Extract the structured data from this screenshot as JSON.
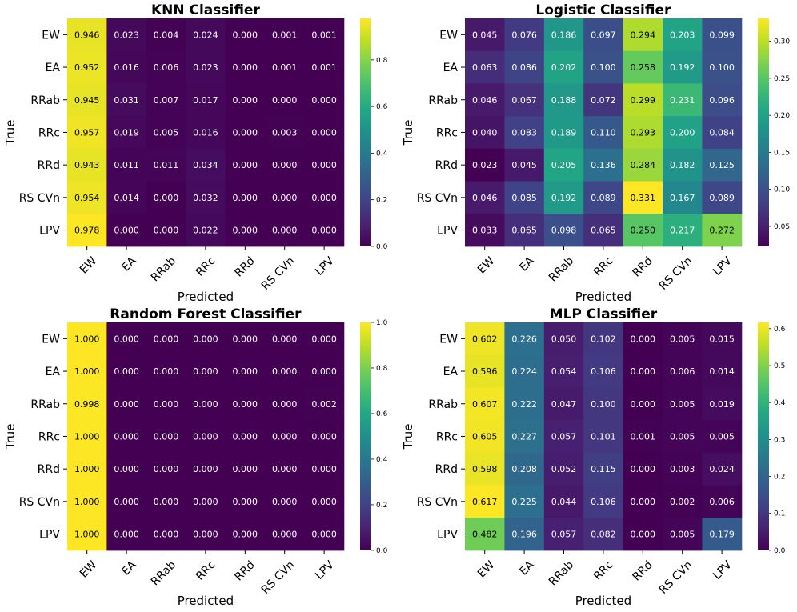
{
  "chart_data": [
    {
      "type": "heatmap",
      "title": "KNN Classifier",
      "xlabel": "Predicted",
      "ylabel": "True",
      "rows": [
        "EW",
        "EA",
        "RRab",
        "RRc",
        "RRd",
        "RS CVn",
        "LPV"
      ],
      "cols": [
        "EW",
        "EA",
        "RRab",
        "RRc",
        "RRd",
        "RS CVn",
        "LPV"
      ],
      "values": [
        [
          0.946,
          0.023,
          0.004,
          0.024,
          0.0,
          0.001,
          0.001
        ],
        [
          0.952,
          0.016,
          0.006,
          0.023,
          0.0,
          0.001,
          0.001
        ],
        [
          0.945,
          0.031,
          0.007,
          0.017,
          0.0,
          0.0,
          0.0
        ],
        [
          0.957,
          0.019,
          0.005,
          0.016,
          0.0,
          0.003,
          0.0
        ],
        [
          0.943,
          0.011,
          0.011,
          0.034,
          0.0,
          0.0,
          0.0
        ],
        [
          0.954,
          0.014,
          0.0,
          0.032,
          0.0,
          0.0,
          0.0
        ],
        [
          0.978,
          0.0,
          0.0,
          0.022,
          0.0,
          0.0,
          0.0
        ]
      ],
      "vmin": 0.0,
      "vmax": 0.978,
      "colorbar_ticks": [
        0.0,
        0.2,
        0.4,
        0.6,
        0.8
      ],
      "colorbar_labels": [
        "0.0",
        "0.2",
        "0.4",
        "0.6",
        "0.8"
      ]
    },
    {
      "type": "heatmap",
      "title": "Logistic Classifier",
      "xlabel": "Predicted",
      "ylabel": "True",
      "rows": [
        "EW",
        "EA",
        "RRab",
        "RRc",
        "RRd",
        "RS CVn",
        "LPV"
      ],
      "cols": [
        "EW",
        "EA",
        "RRab",
        "RRc",
        "RRd",
        "RS CVn",
        "LPV"
      ],
      "values": [
        [
          0.045,
          0.076,
          0.186,
          0.097,
          0.294,
          0.203,
          0.099
        ],
        [
          0.063,
          0.086,
          0.202,
          0.1,
          0.258,
          0.192,
          0.1
        ],
        [
          0.046,
          0.067,
          0.188,
          0.072,
          0.299,
          0.231,
          0.096
        ],
        [
          0.04,
          0.083,
          0.189,
          0.11,
          0.293,
          0.2,
          0.084
        ],
        [
          0.023,
          0.045,
          0.205,
          0.136,
          0.284,
          0.182,
          0.125
        ],
        [
          0.046,
          0.085,
          0.192,
          0.089,
          0.331,
          0.167,
          0.089
        ],
        [
          0.033,
          0.065,
          0.098,
          0.065,
          0.25,
          0.217,
          0.272
        ]
      ],
      "vmin": 0.023,
      "vmax": 0.331,
      "colorbar_ticks": [
        0.05,
        0.1,
        0.15,
        0.2,
        0.25,
        0.3
      ],
      "colorbar_labels": [
        "0.05",
        "0.10",
        "0.15",
        "0.20",
        "0.25",
        "0.30"
      ]
    },
    {
      "type": "heatmap",
      "title": "Random Forest Classifier",
      "xlabel": "Predicted",
      "ylabel": "True",
      "rows": [
        "EW",
        "EA",
        "RRab",
        "RRc",
        "RRd",
        "RS CVn",
        "LPV"
      ],
      "cols": [
        "EW",
        "EA",
        "RRab",
        "RRc",
        "RRd",
        "RS CVn",
        "LPV"
      ],
      "values": [
        [
          1.0,
          0.0,
          0.0,
          0.0,
          0.0,
          0.0,
          0.0
        ],
        [
          1.0,
          0.0,
          0.0,
          0.0,
          0.0,
          0.0,
          0.0
        ],
        [
          0.998,
          0.0,
          0.0,
          0.0,
          0.0,
          0.0,
          0.002
        ],
        [
          1.0,
          0.0,
          0.0,
          0.0,
          0.0,
          0.0,
          0.0
        ],
        [
          1.0,
          0.0,
          0.0,
          0.0,
          0.0,
          0.0,
          0.0
        ],
        [
          1.0,
          0.0,
          0.0,
          0.0,
          0.0,
          0.0,
          0.0
        ],
        [
          1.0,
          0.0,
          0.0,
          0.0,
          0.0,
          0.0,
          0.0
        ]
      ],
      "vmin": 0.0,
      "vmax": 1.0,
      "colorbar_ticks": [
        0.0,
        0.2,
        0.4,
        0.6,
        0.8,
        1.0
      ],
      "colorbar_labels": [
        "0.0",
        "0.2",
        "0.4",
        "0.6",
        "0.8",
        "1.0"
      ]
    },
    {
      "type": "heatmap",
      "title": "MLP Classifier",
      "xlabel": "Predicted",
      "ylabel": "True",
      "rows": [
        "EW",
        "EA",
        "RRab",
        "RRc",
        "RRd",
        "RS CVn",
        "LPV"
      ],
      "cols": [
        "EW",
        "EA",
        "RRab",
        "RRc",
        "RRd",
        "RS CVn",
        "LPV"
      ],
      "values": [
        [
          0.602,
          0.226,
          0.05,
          0.102,
          0.0,
          0.005,
          0.015
        ],
        [
          0.596,
          0.224,
          0.054,
          0.106,
          0.0,
          0.006,
          0.014
        ],
        [
          0.607,
          0.222,
          0.047,
          0.1,
          0.0,
          0.005,
          0.019
        ],
        [
          0.605,
          0.227,
          0.057,
          0.101,
          0.001,
          0.005,
          0.005
        ],
        [
          0.598,
          0.208,
          0.052,
          0.115,
          0.0,
          0.003,
          0.024
        ],
        [
          0.617,
          0.225,
          0.044,
          0.106,
          0.0,
          0.002,
          0.006
        ],
        [
          0.482,
          0.196,
          0.057,
          0.082,
          0.0,
          0.005,
          0.179
        ]
      ],
      "vmin": 0.0,
      "vmax": 0.617,
      "colorbar_ticks": [
        0.0,
        0.1,
        0.2,
        0.3,
        0.4,
        0.5,
        0.6
      ],
      "colorbar_labels": [
        "0.0",
        "0.1",
        "0.2",
        "0.3",
        "0.4",
        "0.5",
        "0.6"
      ]
    }
  ]
}
